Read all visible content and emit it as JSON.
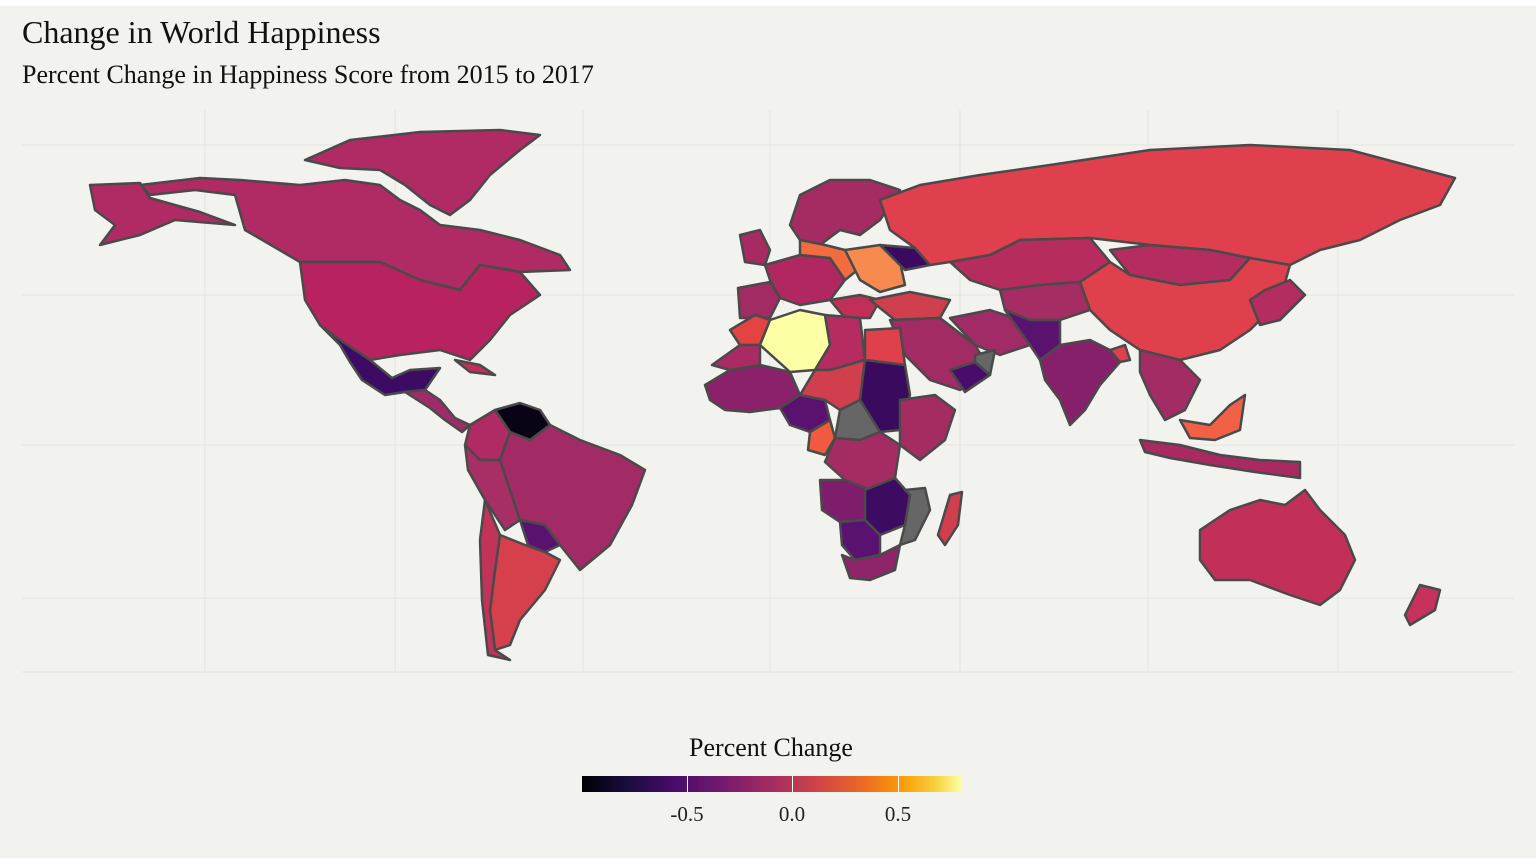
{
  "title": "Change in World Happiness",
  "subtitle": "Percent Change in Happiness Score from 2015 to 2017",
  "legend": {
    "title": "Percent Change",
    "tick_labels": [
      "-0.5",
      "0.0",
      "0.5"
    ],
    "tick_values": [
      -0.5,
      0.0,
      0.5
    ],
    "range": [
      -1.0,
      0.8
    ],
    "palette": [
      "#000004",
      "#1b0c41",
      "#4a0c6b",
      "#781c6d",
      "#a52c60",
      "#cf4446",
      "#ed6925",
      "#fb9b06",
      "#f7d13d",
      "#fcffa4"
    ],
    "missing_color": "#666666"
  },
  "colors": {
    "background": "#f2f2ee",
    "border": "#4a4a4a"
  }
}
